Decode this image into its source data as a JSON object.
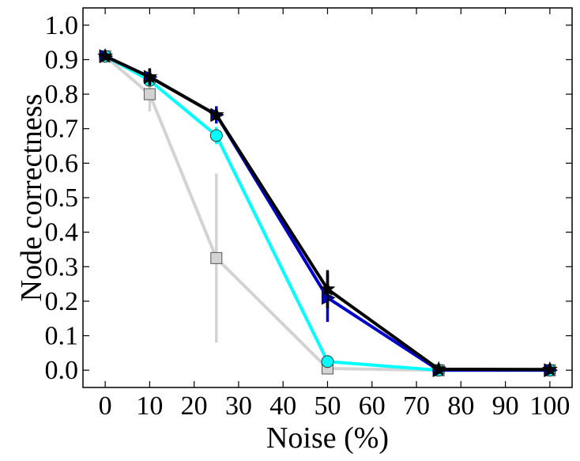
{
  "chart_data": {
    "type": "line",
    "xlabel": "Noise (%)",
    "ylabel": "Node correctness",
    "xlim": [
      -5,
      105
    ],
    "ylim": [
      -0.05,
      1.05
    ],
    "xticks": [
      0,
      10,
      20,
      30,
      40,
      50,
      60,
      70,
      80,
      90,
      100
    ],
    "xtick_labels": [
      "0",
      "10",
      "20",
      "30",
      "40",
      "50",
      "60",
      "70",
      "80",
      "90",
      "100"
    ],
    "yticks": [
      0.0,
      0.1,
      0.2,
      0.3,
      0.4,
      0.5,
      0.6,
      0.7,
      0.8,
      0.9,
      1.0
    ],
    "ytick_labels": [
      "0.0",
      "0.1",
      "0.2",
      "0.3",
      "0.4",
      "0.5",
      "0.6",
      "0.7",
      "0.8",
      "0.9",
      "1.0"
    ],
    "grid": false,
    "series": [
      {
        "color": "#d3d3d3",
        "marker": "square",
        "x": [
          0,
          10,
          25,
          50,
          75,
          100
        ],
        "y": [
          0.91,
          0.8,
          0.325,
          0.005,
          0.0,
          0.0
        ],
        "err": [
          0.005,
          0.05,
          0.245,
          0.005,
          0.0,
          0.0
        ]
      },
      {
        "color": "#00ffff",
        "marker": "circle",
        "x": [
          0,
          10,
          25,
          50,
          75,
          100
        ],
        "y": [
          0.91,
          0.84,
          0.68,
          0.025,
          0.0,
          0.0
        ],
        "err": [
          0.005,
          0.015,
          0.025,
          0.005,
          0.0,
          0.0
        ]
      },
      {
        "color": "#0000cd",
        "marker": "triangle-right",
        "x": [
          0,
          10,
          25,
          50,
          75,
          100
        ],
        "y": [
          0.91,
          0.85,
          0.74,
          0.21,
          0.0,
          0.0
        ],
        "err": [
          0.005,
          0.02,
          0.025,
          0.07,
          0.0,
          0.0
        ]
      },
      {
        "color": "#000000",
        "marker": "star",
        "x": [
          0,
          10,
          25,
          50,
          75,
          100
        ],
        "y": [
          0.91,
          0.85,
          0.74,
          0.235,
          0.003,
          0.002
        ],
        "err": [
          0.005,
          0.025,
          0.015,
          0.055,
          0.0,
          0.0
        ]
      }
    ]
  }
}
